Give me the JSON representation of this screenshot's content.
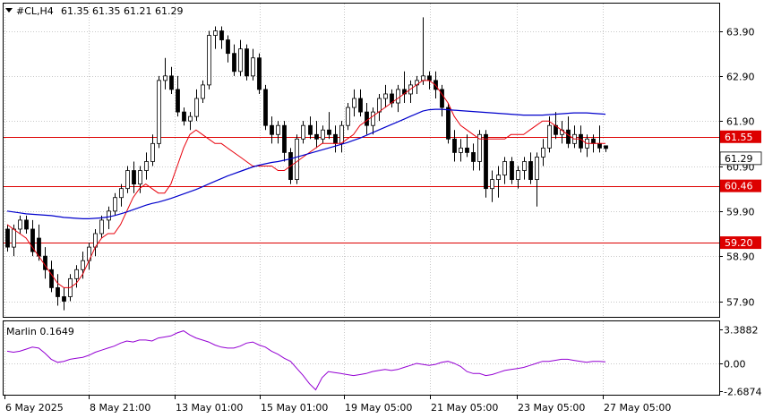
{
  "header": {
    "symbol_tf": "#CL,H4",
    "ohlc": "61.35 61.35 61.21 61.29"
  },
  "indicator": {
    "label": "Marlin 0.1649",
    "axis_labels": [
      "3.3882",
      "0.00",
      "-2.6874"
    ]
  },
  "colors": {
    "background": "#ffffff",
    "bull_candle": "#ffffff",
    "bear_candle": "#000000",
    "fast_ma": "#e8000b",
    "slow_ma": "#0000cc",
    "level_line": "#dd0000",
    "oscillator": "#9400d3",
    "grid": "#c8c8c8"
  },
  "chart_data": {
    "type": "candlestick",
    "symbol": "#CL",
    "timeframe": "H4",
    "price_axis": {
      "ticks": [
        "63.90",
        "62.90",
        "61.90",
        "60.90",
        "59.90",
        "58.90",
        "57.90"
      ],
      "range": [
        57.6,
        64.3
      ]
    },
    "time_axis": {
      "labels": [
        "6 May 2025",
        "8 May 21:00",
        "13 May 01:00",
        "15 May 01:00",
        "19 May 05:00",
        "21 May 05:00",
        "23 May 05:00",
        "27 May 05:00"
      ]
    },
    "levels": [
      {
        "label": "61.55",
        "value": 61.55
      },
      {
        "label": "60.46",
        "value": 60.46
      },
      {
        "label": "59.20",
        "value": 59.2
      }
    ],
    "last_price": {
      "label": "61.29",
      "value": 61.29
    },
    "candles": [
      [
        59.5,
        59.6,
        59.0,
        59.1
      ],
      [
        59.1,
        59.6,
        58.9,
        59.5
      ],
      [
        59.5,
        59.8,
        59.4,
        59.7
      ],
      [
        59.7,
        59.8,
        59.4,
        59.5
      ],
      [
        59.5,
        59.7,
        58.9,
        59.0
      ],
      [
        59.3,
        59.6,
        58.8,
        58.9
      ],
      [
        58.9,
        59.1,
        58.4,
        58.6
      ],
      [
        58.6,
        58.8,
        58.1,
        58.2
      ],
      [
        58.2,
        58.5,
        57.8,
        58.0
      ],
      [
        58.0,
        58.2,
        57.7,
        57.9
      ],
      [
        58.0,
        58.5,
        57.9,
        58.4
      ],
      [
        58.4,
        58.7,
        58.2,
        58.6
      ],
      [
        58.6,
        59.0,
        58.4,
        58.8
      ],
      [
        58.8,
        59.2,
        58.6,
        59.1
      ],
      [
        59.1,
        59.5,
        58.9,
        59.4
      ],
      [
        59.4,
        59.8,
        59.3,
        59.7
      ],
      [
        59.7,
        60.0,
        59.5,
        59.9
      ],
      [
        59.9,
        60.3,
        59.8,
        60.2
      ],
      [
        60.2,
        60.5,
        60.0,
        60.4
      ],
      [
        60.4,
        60.9,
        60.3,
        60.8
      ],
      [
        60.8,
        61.0,
        60.3,
        60.5
      ],
      [
        60.5,
        60.9,
        60.3,
        60.8
      ],
      [
        60.8,
        61.2,
        60.6,
        61.0
      ],
      [
        61.0,
        61.6,
        60.9,
        61.4
      ],
      [
        61.4,
        62.9,
        61.3,
        62.8
      ],
      [
        62.8,
        63.3,
        62.6,
        62.9
      ],
      [
        62.9,
        63.1,
        62.5,
        62.6
      ],
      [
        62.6,
        62.9,
        62.0,
        62.1
      ],
      [
        62.1,
        62.2,
        61.8,
        61.9
      ],
      [
        61.9,
        62.1,
        61.7,
        62.0
      ],
      [
        62.0,
        62.6,
        61.9,
        62.4
      ],
      [
        62.4,
        62.8,
        62.3,
        62.7
      ],
      [
        62.7,
        63.9,
        62.6,
        63.8
      ],
      [
        63.8,
        64.0,
        63.5,
        63.9
      ],
      [
        63.9,
        64.0,
        63.5,
        63.7
      ],
      [
        63.7,
        63.8,
        63.2,
        63.4
      ],
      [
        63.4,
        63.6,
        62.9,
        63.0
      ],
      [
        63.0,
        63.7,
        62.9,
        63.5
      ],
      [
        63.5,
        63.6,
        62.8,
        62.9
      ],
      [
        62.9,
        63.5,
        62.8,
        63.3
      ],
      [
        63.3,
        63.4,
        62.5,
        62.6
      ],
      [
        62.6,
        62.7,
        61.7,
        61.8
      ],
      [
        61.8,
        62.0,
        61.4,
        61.6
      ],
      [
        61.6,
        61.9,
        61.4,
        61.8
      ],
      [
        61.8,
        61.9,
        61.0,
        61.2
      ],
      [
        61.2,
        61.3,
        60.5,
        60.6
      ],
      [
        60.6,
        61.6,
        60.5,
        61.5
      ],
      [
        61.5,
        61.9,
        61.4,
        61.8
      ],
      [
        61.8,
        62.0,
        61.5,
        61.6
      ],
      [
        61.6,
        61.9,
        61.3,
        61.5
      ],
      [
        61.5,
        61.8,
        61.4,
        61.7
      ],
      [
        61.7,
        62.1,
        61.5,
        61.6
      ],
      [
        61.6,
        61.8,
        61.2,
        61.4
      ],
      [
        61.4,
        61.9,
        61.2,
        61.8
      ],
      [
        61.8,
        62.3,
        61.7,
        62.2
      ],
      [
        62.2,
        62.6,
        62.0,
        62.4
      ],
      [
        62.4,
        62.6,
        62.0,
        62.1
      ],
      [
        62.1,
        62.3,
        61.6,
        61.8
      ],
      [
        61.8,
        62.2,
        61.6,
        62.1
      ],
      [
        62.1,
        62.5,
        61.9,
        62.4
      ],
      [
        62.4,
        62.7,
        62.2,
        62.5
      ],
      [
        62.5,
        62.6,
        62.2,
        62.3
      ],
      [
        62.3,
        62.7,
        62.1,
        62.6
      ],
      [
        62.6,
        63.0,
        62.3,
        62.5
      ],
      [
        62.5,
        62.8,
        62.3,
        62.7
      ],
      [
        62.7,
        62.9,
        62.5,
        62.8
      ],
      [
        62.8,
        64.2,
        62.7,
        62.9
      ],
      [
        62.9,
        63.0,
        62.6,
        62.8
      ],
      [
        62.8,
        63.0,
        62.4,
        62.6
      ],
      [
        62.6,
        62.7,
        62.0,
        62.2
      ],
      [
        62.2,
        62.3,
        61.4,
        61.5
      ],
      [
        61.5,
        61.7,
        61.0,
        61.2
      ],
      [
        61.2,
        61.5,
        61.0,
        61.3
      ],
      [
        61.3,
        61.6,
        61.1,
        61.2
      ],
      [
        61.2,
        61.4,
        60.8,
        61.0
      ],
      [
        61.0,
        61.7,
        60.8,
        61.6
      ],
      [
        61.6,
        61.7,
        60.2,
        60.4
      ],
      [
        60.4,
        60.8,
        60.1,
        60.6
      ],
      [
        60.6,
        60.9,
        60.2,
        60.7
      ],
      [
        60.7,
        61.1,
        60.5,
        61.0
      ],
      [
        61.0,
        61.1,
        60.5,
        60.6
      ],
      [
        60.6,
        60.9,
        60.4,
        60.8
      ],
      [
        60.8,
        61.1,
        60.6,
        61.0
      ],
      [
        61.0,
        61.2,
        60.5,
        60.6
      ],
      [
        60.6,
        61.2,
        60.0,
        61.1
      ],
      [
        61.1,
        61.5,
        60.9,
        61.3
      ],
      [
        61.3,
        62.0,
        61.2,
        61.8
      ],
      [
        61.8,
        62.1,
        61.5,
        61.6
      ],
      [
        61.6,
        61.9,
        61.4,
        61.7
      ],
      [
        61.7,
        62.0,
        61.3,
        61.4
      ],
      [
        61.4,
        61.8,
        61.3,
        61.6
      ],
      [
        61.6,
        61.8,
        61.2,
        61.3
      ],
      [
        61.3,
        61.6,
        61.1,
        61.5
      ],
      [
        61.5,
        61.6,
        61.2,
        61.4
      ],
      [
        61.4,
        61.8,
        61.2,
        61.3
      ],
      [
        61.35,
        61.35,
        61.21,
        61.29
      ]
    ],
    "fast_ma": [
      59.6,
      59.5,
      59.4,
      59.3,
      59.1,
      58.9,
      58.7,
      58.5,
      58.3,
      58.2,
      58.2,
      58.3,
      58.5,
      58.8,
      59.1,
      59.3,
      59.4,
      59.4,
      59.6,
      59.9,
      60.2,
      60.4,
      60.5,
      60.4,
      60.3,
      60.3,
      60.5,
      60.9,
      61.3,
      61.6,
      61.7,
      61.6,
      61.5,
      61.4,
      61.4,
      61.3,
      61.2,
      61.1,
      61.0,
      60.9,
      60.9,
      60.9,
      60.9,
      60.8,
      60.8,
      60.9,
      61.0,
      61.1,
      61.2,
      61.3,
      61.4,
      61.4,
      61.4,
      61.4,
      61.5,
      61.6,
      61.8,
      61.9,
      62.0,
      62.1,
      62.2,
      62.3,
      62.4,
      62.5,
      62.6,
      62.7,
      62.8,
      62.8,
      62.7,
      62.5,
      62.3,
      62.0,
      61.8,
      61.7,
      61.6,
      61.5,
      61.5,
      61.5,
      61.5,
      61.5,
      61.6,
      61.6,
      61.6,
      61.7,
      61.8,
      61.9,
      61.9,
      61.8,
      61.7,
      61.6,
      61.5,
      61.5,
      61.4,
      61.4,
      61.4,
      61.4
    ],
    "slow_ma": [
      59.9,
      59.88,
      59.86,
      59.84,
      59.83,
      59.82,
      59.81,
      59.8,
      59.78,
      59.76,
      59.75,
      59.74,
      59.73,
      59.73,
      59.74,
      59.75,
      59.77,
      59.8,
      59.84,
      59.88,
      59.93,
      59.98,
      60.03,
      60.07,
      60.1,
      60.14,
      60.18,
      60.23,
      60.28,
      60.33,
      60.38,
      60.44,
      60.5,
      60.56,
      60.62,
      60.68,
      60.73,
      60.78,
      60.83,
      60.88,
      60.92,
      60.95,
      60.98,
      61.0,
      61.03,
      61.06,
      61.1,
      61.14,
      61.18,
      61.22,
      61.26,
      61.3,
      61.34,
      61.38,
      61.42,
      61.47,
      61.52,
      61.58,
      61.64,
      61.7,
      61.76,
      61.82,
      61.88,
      61.94,
      62.0,
      62.06,
      62.12,
      62.15,
      62.16,
      62.16,
      62.15,
      62.14,
      62.13,
      62.12,
      62.11,
      62.1,
      62.09,
      62.08,
      62.07,
      62.06,
      62.05,
      62.04,
      62.03,
      62.03,
      62.03,
      62.03,
      62.04,
      62.05,
      62.06,
      62.07,
      62.08,
      62.08,
      62.08,
      62.07,
      62.06,
      62.05
    ],
    "oscillator": {
      "name": "Marlin",
      "value": 0.1649,
      "range": [
        -2.6874,
        3.3882
      ],
      "values": [
        1.2,
        1.1,
        1.2,
        1.4,
        1.6,
        1.5,
        1.0,
        0.4,
        0.1,
        0.2,
        0.4,
        0.5,
        0.6,
        0.8,
        1.1,
        1.3,
        1.5,
        1.7,
        2.0,
        2.2,
        2.1,
        2.3,
        2.3,
        2.2,
        2.5,
        2.6,
        2.7,
        3.0,
        3.2,
        2.8,
        2.5,
        2.3,
        2.1,
        1.8,
        1.6,
        1.5,
        1.5,
        1.7,
        2.0,
        2.1,
        1.8,
        1.6,
        1.2,
        0.9,
        0.5,
        0.2,
        -0.5,
        -1.2,
        -2.0,
        -2.6,
        -1.4,
        -0.8,
        -0.9,
        -1.0,
        -1.1,
        -1.2,
        -1.1,
        -1.0,
        -0.8,
        -0.7,
        -0.6,
        -0.7,
        -0.6,
        -0.4,
        -0.2,
        0.0,
        -0.1,
        -0.2,
        -0.1,
        0.1,
        0.2,
        0.0,
        -0.3,
        -0.8,
        -1.0,
        -1.0,
        -1.2,
        -1.1,
        -0.9,
        -0.7,
        -0.6,
        -0.5,
        -0.4,
        -0.2,
        0.0,
        0.2,
        0.2,
        0.3,
        0.4,
        0.4,
        0.3,
        0.2,
        0.1,
        0.2,
        0.2,
        0.16
      ]
    }
  }
}
